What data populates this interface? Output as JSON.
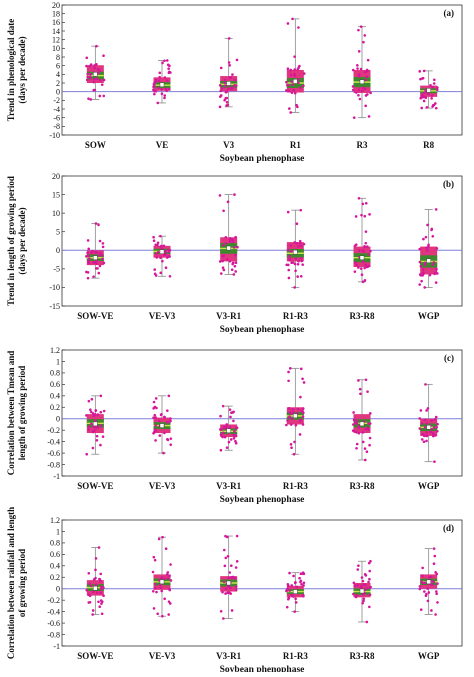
{
  "colors": {
    "box": "#e0357f",
    "iqr_band": "#3d8a2e",
    "median": "#c8e64a",
    "points": "#d6169a",
    "zero_line": "#7f7fd8",
    "whisker": "#888888",
    "mean_marker": "#ffffff"
  },
  "chart_data": [
    {
      "type": "box",
      "panel_label": "(a)",
      "xlabel": "Soybean phenophase",
      "ylabel": [
        "Trend in phenological date",
        "(days per decade)"
      ],
      "ylim": [
        -10,
        20
      ],
      "yticks": [
        -10,
        -8,
        -6,
        -4,
        -2,
        0,
        2,
        4,
        6,
        8,
        10,
        12,
        14,
        16,
        18,
        20
      ],
      "categories": [
        "SOW",
        "VE",
        "V3",
        "R1",
        "R3",
        "R8"
      ],
      "boxes": [
        {
          "min": -1.8,
          "q1": 2.0,
          "median": 3.7,
          "q3": 6.1,
          "max": 10.5,
          "mean": 4.0
        },
        {
          "min": -2.6,
          "q1": 0.2,
          "median": 1.5,
          "q3": 3.3,
          "max": 7.2,
          "mean": 1.6
        },
        {
          "min": -3.5,
          "q1": 0.1,
          "median": 1.7,
          "q3": 3.6,
          "max": 12.3,
          "mean": 1.9
        },
        {
          "min": -4.8,
          "q1": -0.2,
          "median": 2.0,
          "q3": 5.0,
          "max": 16.8,
          "mean": 2.4
        },
        {
          "min": -6.0,
          "q1": -0.3,
          "median": 2.2,
          "q3": 5.0,
          "max": 15.0,
          "mean": 2.3
        },
        {
          "min": -3.8,
          "q1": -1.2,
          "median": 0.2,
          "q3": 1.4,
          "max": 4.8,
          "mean": 0.3
        }
      ]
    },
    {
      "type": "box",
      "panel_label": "(b)",
      "xlabel": "Soybean phenophase",
      "ylabel": [
        "Trend in length of growing period",
        "(days per decade)"
      ],
      "ylim": [
        -15,
        20
      ],
      "yticks": [
        -15,
        -10,
        -5,
        0,
        5,
        10,
        15,
        20
      ],
      "categories": [
        "SOW-VE",
        "VE-V3",
        "V3-R1",
        "R1-R3",
        "R3-R8",
        "WGP"
      ],
      "boxes": [
        {
          "min": -7.5,
          "q1": -4.0,
          "median": -2.0,
          "q3": 0.0,
          "max": 7.2,
          "mean": -2.0
        },
        {
          "min": -7.0,
          "q1": -2.0,
          "median": -0.3,
          "q3": 1.2,
          "max": 3.8,
          "mean": -0.4
        },
        {
          "min": -6.5,
          "q1": -3.0,
          "median": 0.5,
          "q3": 3.5,
          "max": 15.0,
          "mean": 0.6
        },
        {
          "min": -10.0,
          "q1": -3.0,
          "median": -0.8,
          "q3": 2.2,
          "max": 10.8,
          "mean": -0.5
        },
        {
          "min": -8.5,
          "q1": -4.5,
          "median": -2.0,
          "q3": 1.0,
          "max": 14.0,
          "mean": -2.0
        },
        {
          "min": -10.0,
          "q1": -6.5,
          "median": -3.0,
          "q3": 1.0,
          "max": 11.0,
          "mean": -2.8
        }
      ]
    },
    {
      "type": "box",
      "panel_label": "(c)",
      "xlabel": "Soybean phenophase",
      "ylabel": [
        "Correlation between Tmean and",
        "length of growing period"
      ],
      "ylim": [
        -1.0,
        1.2
      ],
      "yticks": [
        -1.0,
        -0.8,
        -0.6,
        -0.4,
        -0.2,
        0.0,
        0.2,
        0.4,
        0.6,
        0.8,
        1.0,
        1.2
      ],
      "categories": [
        "SOW-VE",
        "VE-V3",
        "V3-R1",
        "R1-R3",
        "R3-R8",
        "WGP"
      ],
      "boxes": [
        {
          "min": -0.62,
          "q1": -0.25,
          "median": -0.08,
          "q3": 0.08,
          "max": 0.4,
          "mean": -0.09
        },
        {
          "min": -0.6,
          "q1": -0.25,
          "median": -0.12,
          "q3": 0.02,
          "max": 0.4,
          "mean": -0.12
        },
        {
          "min": -0.55,
          "q1": -0.32,
          "median": -0.22,
          "q3": -0.1,
          "max": 0.22,
          "mean": -0.21
        },
        {
          "min": -0.62,
          "q1": -0.1,
          "median": 0.05,
          "q3": 0.2,
          "max": 0.88,
          "mean": 0.05
        },
        {
          "min": -0.72,
          "q1": -0.25,
          "median": -0.08,
          "q3": 0.08,
          "max": 0.68,
          "mean": -0.09
        },
        {
          "min": -0.75,
          "q1": -0.3,
          "median": -0.15,
          "q3": 0.0,
          "max": 0.6,
          "mean": -0.15
        }
      ]
    },
    {
      "type": "box",
      "panel_label": "(d)",
      "xlabel": "Soybean phenophase",
      "ylabel": [
        "Correlation between rainfall and length",
        "of growing period"
      ],
      "ylim": [
        -1.0,
        1.2
      ],
      "yticks": [
        -1.0,
        -0.8,
        -0.6,
        -0.4,
        -0.2,
        0.0,
        0.2,
        0.4,
        0.6,
        0.8,
        1.0,
        1.2
      ],
      "categories": [
        "SOW-VE",
        "VE-V3",
        "V3-R1",
        "R1-R3",
        "R3-R8",
        "WGP"
      ],
      "boxes": [
        {
          "min": -0.45,
          "q1": -0.12,
          "median": 0.02,
          "q3": 0.15,
          "max": 0.72,
          "mean": 0.01
        },
        {
          "min": -0.48,
          "q1": -0.02,
          "median": 0.12,
          "q3": 0.25,
          "max": 0.9,
          "mean": 0.12
        },
        {
          "min": -0.52,
          "q1": -0.05,
          "median": 0.1,
          "q3": 0.22,
          "max": 0.92,
          "mean": 0.1
        },
        {
          "min": -0.4,
          "q1": -0.15,
          "median": -0.05,
          "q3": 0.05,
          "max": 0.28,
          "mean": -0.05
        },
        {
          "min": -0.58,
          "q1": -0.15,
          "median": -0.05,
          "q3": 0.1,
          "max": 0.48,
          "mean": -0.04
        },
        {
          "min": -0.45,
          "q1": 0.0,
          "median": 0.12,
          "q3": 0.25,
          "max": 0.7,
          "mean": 0.12
        }
      ]
    }
  ]
}
